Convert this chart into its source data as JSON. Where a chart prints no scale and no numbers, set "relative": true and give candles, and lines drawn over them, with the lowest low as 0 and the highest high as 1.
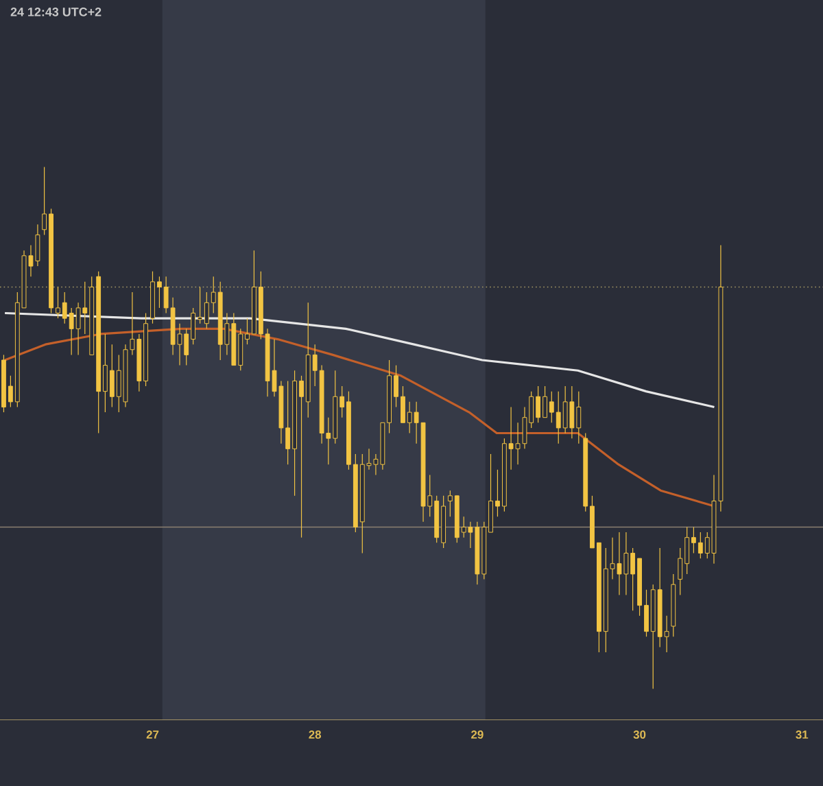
{
  "chart_data": {
    "type": "candlestick",
    "relative": true,
    "color": "#f2c443",
    "annotations": [
      "24 12:43 UTC+2"
    ],
    "xlim": [
      26.06,
      31.13
    ],
    "xticks": [
      27,
      28,
      29,
      30,
      31
    ],
    "x": [
      26.083,
      26.125,
      26.167,
      26.208,
      26.25,
      26.292,
      26.333,
      26.375,
      26.417,
      26.458,
      26.5,
      26.542,
      26.583,
      26.625,
      26.667,
      26.708,
      26.75,
      26.792,
      26.833,
      26.875,
      26.917,
      26.958,
      27,
      27.042,
      27.083,
      27.125,
      27.167,
      27.208,
      27.25,
      27.292,
      27.333,
      27.375,
      27.417,
      27.458,
      27.5,
      27.542,
      27.583,
      27.625,
      27.667,
      27.708,
      27.75,
      27.792,
      27.833,
      27.875,
      27.917,
      27.958,
      28,
      28.042,
      28.083,
      28.125,
      28.167,
      28.208,
      28.25,
      28.292,
      28.333,
      28.375,
      28.417,
      28.458,
      28.5,
      28.542,
      28.583,
      28.625,
      28.667,
      28.708,
      28.75,
      28.792,
      28.833,
      28.875,
      28.917,
      28.958,
      29,
      29.042,
      29.083,
      29.125,
      29.167,
      29.208,
      29.25,
      29.292,
      29.333,
      29.375,
      29.417,
      29.458,
      29.5,
      29.542,
      29.583,
      29.625,
      29.667,
      29.708,
      29.75,
      29.792,
      29.833,
      29.875,
      29.917,
      29.958,
      30,
      30.042,
      30.083,
      30.125,
      30.167,
      30.208,
      30.25,
      30.292,
      30.333,
      30.375,
      30.417,
      30.458,
      30.5
    ],
    "ohlc": [
      [
        0.63,
        0.64,
        0.53,
        0.54
      ],
      [
        0.58,
        0.6,
        0.54,
        0.55
      ],
      [
        0.55,
        0.76,
        0.54,
        0.74
      ],
      [
        0.73,
        0.84,
        0.73,
        0.83
      ],
      [
        0.83,
        0.85,
        0.79,
        0.81
      ],
      [
        0.82,
        0.89,
        0.81,
        0.87
      ],
      [
        0.88,
        1.0,
        0.87,
        0.91
      ],
      [
        0.91,
        0.92,
        0.72,
        0.73
      ],
      [
        0.72,
        0.77,
        0.71,
        0.73
      ],
      [
        0.74,
        0.76,
        0.7,
        0.71
      ],
      [
        0.72,
        0.73,
        0.64,
        0.69
      ],
      [
        0.69,
        0.74,
        0.64,
        0.73
      ],
      [
        0.73,
        0.78,
        0.68,
        0.72
      ],
      [
        0.64,
        0.79,
        0.64,
        0.77
      ],
      [
        0.79,
        0.8,
        0.49,
        0.57
      ],
      [
        0.57,
        0.68,
        0.53,
        0.62
      ],
      [
        0.61,
        0.66,
        0.54,
        0.56
      ],
      [
        0.56,
        0.64,
        0.53,
        0.61
      ],
      [
        0.55,
        0.66,
        0.54,
        0.65
      ],
      [
        0.65,
        0.76,
        0.64,
        0.67
      ],
      [
        0.67,
        0.68,
        0.57,
        0.59
      ],
      [
        0.59,
        0.72,
        0.58,
        0.7
      ],
      [
        0.71,
        0.8,
        0.7,
        0.78
      ],
      [
        0.78,
        0.79,
        0.73,
        0.77
      ],
      [
        0.77,
        0.79,
        0.72,
        0.73
      ],
      [
        0.73,
        0.75,
        0.64,
        0.66
      ],
      [
        0.66,
        0.7,
        0.62,
        0.68
      ],
      [
        0.68,
        0.69,
        0.62,
        0.64
      ],
      [
        0.67,
        0.73,
        0.66,
        0.72
      ],
      [
        0.71,
        0.77,
        0.7,
        0.71
      ],
      [
        0.7,
        0.76,
        0.69,
        0.74
      ],
      [
        0.74,
        0.79,
        0.72,
        0.76
      ],
      [
        0.76,
        0.78,
        0.63,
        0.66
      ],
      [
        0.66,
        0.72,
        0.64,
        0.7
      ],
      [
        0.7,
        0.72,
        0.62,
        0.62
      ],
      [
        0.62,
        0.69,
        0.61,
        0.68
      ],
      [
        0.67,
        0.71,
        0.66,
        0.68
      ],
      [
        0.68,
        0.84,
        0.68,
        0.77
      ],
      [
        0.77,
        0.8,
        0.67,
        0.68
      ],
      [
        0.68,
        0.69,
        0.56,
        0.59
      ],
      [
        0.61,
        0.67,
        0.56,
        0.57
      ],
      [
        0.58,
        0.59,
        0.47,
        0.5
      ],
      [
        0.5,
        0.59,
        0.43,
        0.46
      ],
      [
        0.46,
        0.61,
        0.37,
        0.59
      ],
      [
        0.59,
        0.6,
        0.29,
        0.56
      ],
      [
        0.55,
        0.74,
        0.52,
        0.64
      ],
      [
        0.64,
        0.66,
        0.58,
        0.61
      ],
      [
        0.61,
        0.62,
        0.47,
        0.49
      ],
      [
        0.49,
        0.52,
        0.43,
        0.48
      ],
      [
        0.48,
        0.61,
        0.47,
        0.56
      ],
      [
        0.56,
        0.58,
        0.52,
        0.54
      ],
      [
        0.55,
        0.57,
        0.42,
        0.43
      ],
      [
        0.43,
        0.45,
        0.3,
        0.31
      ],
      [
        0.32,
        0.45,
        0.26,
        0.43
      ],
      [
        0.43,
        0.46,
        0.42,
        0.43
      ],
      [
        0.43,
        0.45,
        0.41,
        0.44
      ],
      [
        0.43,
        0.51,
        0.42,
        0.51
      ],
      [
        0.51,
        0.63,
        0.49,
        0.6
      ],
      [
        0.6,
        0.62,
        0.54,
        0.56
      ],
      [
        0.56,
        0.58,
        0.51,
        0.51
      ],
      [
        0.51,
        0.55,
        0.49,
        0.53
      ],
      [
        0.53,
        0.55,
        0.47,
        0.51
      ],
      [
        0.51,
        0.51,
        0.32,
        0.35
      ],
      [
        0.35,
        0.41,
        0.33,
        0.37
      ],
      [
        0.36,
        0.37,
        0.28,
        0.29
      ],
      [
        0.28,
        0.37,
        0.27,
        0.35
      ],
      [
        0.36,
        0.38,
        0.33,
        0.37
      ],
      [
        0.37,
        0.37,
        0.28,
        0.29
      ],
      [
        0.3,
        0.33,
        0.29,
        0.31
      ],
      [
        0.31,
        0.32,
        0.27,
        0.3
      ],
      [
        0.31,
        0.32,
        0.2,
        0.22
      ],
      [
        0.22,
        0.32,
        0.21,
        0.31
      ],
      [
        0.3,
        0.45,
        0.3,
        0.36
      ],
      [
        0.36,
        0.42,
        0.33,
        0.35
      ],
      [
        0.35,
        0.48,
        0.34,
        0.47
      ],
      [
        0.47,
        0.54,
        0.42,
        0.46
      ],
      [
        0.46,
        0.51,
        0.43,
        0.47
      ],
      [
        0.47,
        0.54,
        0.46,
        0.52
      ],
      [
        0.51,
        0.57,
        0.5,
        0.56
      ],
      [
        0.56,
        0.58,
        0.51,
        0.52
      ],
      [
        0.52,
        0.58,
        0.52,
        0.56
      ],
      [
        0.55,
        0.57,
        0.51,
        0.53
      ],
      [
        0.53,
        0.57,
        0.47,
        0.5
      ],
      [
        0.5,
        0.58,
        0.49,
        0.55
      ],
      [
        0.55,
        0.58,
        0.48,
        0.5
      ],
      [
        0.5,
        0.57,
        0.47,
        0.54
      ],
      [
        0.48,
        0.49,
        0.34,
        0.35
      ],
      [
        0.35,
        0.37,
        0.27,
        0.27
      ],
      [
        0.28,
        0.28,
        0.07,
        0.11
      ],
      [
        0.11,
        0.27,
        0.07,
        0.23
      ],
      [
        0.23,
        0.29,
        0.21,
        0.24
      ],
      [
        0.24,
        0.3,
        0.18,
        0.22
      ],
      [
        0.22,
        0.3,
        0.18,
        0.26
      ],
      [
        0.26,
        0.27,
        0.15,
        0.22
      ],
      [
        0.25,
        0.25,
        0.14,
        0.16
      ],
      [
        0.16,
        0.19,
        0.1,
        0.11
      ],
      [
        0.11,
        0.2,
        0.0,
        0.19
      ],
      [
        0.19,
        0.27,
        0.08,
        0.1
      ],
      [
        0.1,
        0.14,
        0.07,
        0.11
      ],
      [
        0.12,
        0.22,
        0.1,
        0.2
      ],
      [
        0.21,
        0.27,
        0.18,
        0.25
      ],
      [
        0.24,
        0.31,
        0.22,
        0.29
      ],
      [
        0.29,
        0.31,
        0.26,
        0.28
      ],
      [
        0.28,
        0.3,
        0.25,
        0.26
      ],
      [
        0.26,
        0.3,
        0.25,
        0.29
      ],
      [
        0.26,
        0.41,
        0.24,
        0.36
      ],
      [
        0.36,
        0.85,
        0.34,
        0.77
      ]
    ],
    "series": [
      {
        "type": "line",
        "color": "#e6e6e6",
        "x": [
          26.09,
          26.93,
          27.6,
          28.19,
          28.61,
          29.03,
          29.62,
          30.04,
          30.46
        ],
        "values": [
          0.72,
          0.71,
          0.71,
          0.69,
          0.66,
          0.63,
          0.61,
          0.57,
          0.54
        ]
      },
      {
        "type": "line",
        "color": "#c4602a",
        "x": [
          26.09,
          26.34,
          26.68,
          27.18,
          27.44,
          27.77,
          28.11,
          28.53,
          28.95,
          29.12,
          29.45,
          29.62,
          29.87,
          30.13,
          30.46
        ],
        "values": [
          0.63,
          0.66,
          0.68,
          0.69,
          0.69,
          0.67,
          0.64,
          0.6,
          0.53,
          0.49,
          0.49,
          0.49,
          0.43,
          0.38,
          0.35
        ]
      }
    ],
    "ref_lines": [
      {
        "axis": "y",
        "value": 0.77,
        "color": "#a89a66",
        "line_style": "dotted"
      },
      {
        "axis": "y",
        "value": 0.31,
        "color": "#8c8070",
        "line_style": "solid"
      }
    ],
    "bands": [
      {
        "axis": "x",
        "from": 27.06,
        "to": 29.05,
        "color": "#363a47"
      }
    ]
  }
}
